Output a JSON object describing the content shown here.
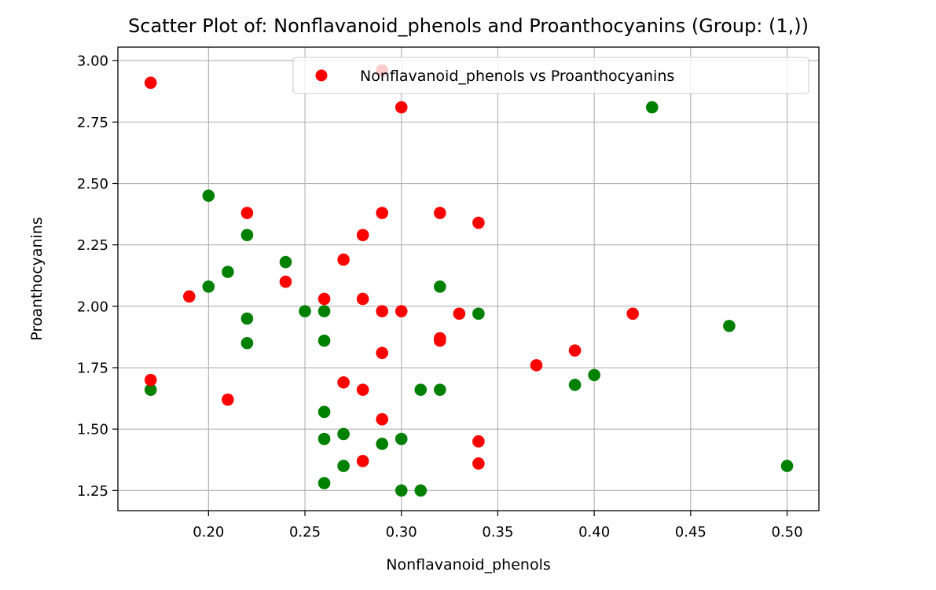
{
  "chart_data": {
    "type": "scatter",
    "title": "Scatter Plot of: Nonflavanoid_phenols and Proanthocyanins (Group: (1,))",
    "xlabel": "Nonflavanoid_phenols",
    "ylabel": "Proanthocyanins",
    "xlim": [
      0.153,
      0.5165
    ],
    "ylim": [
      1.168,
      3.055
    ],
    "xticks": [
      0.2,
      0.25,
      0.3,
      0.35,
      0.4,
      0.45,
      0.5
    ],
    "xtick_labels": [
      "0.20",
      "0.25",
      "0.30",
      "0.35",
      "0.40",
      "0.45",
      "0.50"
    ],
    "yticks": [
      1.25,
      1.5,
      1.75,
      2.0,
      2.25,
      2.5,
      2.75,
      3.0
    ],
    "ytick_labels": [
      "1.25",
      "1.50",
      "1.75",
      "2.00",
      "2.25",
      "2.50",
      "2.75",
      "3.00"
    ],
    "grid": true,
    "legend_position": "top-right",
    "series": [
      {
        "color": "#008000",
        "points": [
          [
            0.17,
            1.66
          ],
          [
            0.2,
            2.45
          ],
          [
            0.2,
            2.08
          ],
          [
            0.21,
            2.14
          ],
          [
            0.22,
            2.29
          ],
          [
            0.22,
            1.95
          ],
          [
            0.22,
            1.85
          ],
          [
            0.24,
            2.18
          ],
          [
            0.25,
            1.98
          ],
          [
            0.26,
            1.98
          ],
          [
            0.26,
            1.86
          ],
          [
            0.26,
            1.57
          ],
          [
            0.26,
            1.46
          ],
          [
            0.26,
            1.28
          ],
          [
            0.27,
            1.48
          ],
          [
            0.27,
            1.35
          ],
          [
            0.29,
            1.44
          ],
          [
            0.3,
            1.46
          ],
          [
            0.3,
            1.25
          ],
          [
            0.31,
            1.66
          ],
          [
            0.31,
            1.25
          ],
          [
            0.32,
            2.08
          ],
          [
            0.32,
            1.66
          ],
          [
            0.34,
            1.97
          ],
          [
            0.39,
            1.68
          ],
          [
            0.4,
            1.72
          ],
          [
            0.43,
            2.81
          ],
          [
            0.47,
            1.92
          ],
          [
            0.5,
            1.35
          ]
        ]
      },
      {
        "name": "Nonflavanoid_phenols vs Proanthocyanins",
        "color": "#ff0000",
        "points": [
          [
            0.17,
            2.91
          ],
          [
            0.17,
            1.7
          ],
          [
            0.19,
            2.04
          ],
          [
            0.21,
            1.62
          ],
          [
            0.22,
            2.38
          ],
          [
            0.24,
            2.1
          ],
          [
            0.26,
            2.03
          ],
          [
            0.27,
            2.19
          ],
          [
            0.27,
            1.69
          ],
          [
            0.28,
            2.29
          ],
          [
            0.28,
            2.03
          ],
          [
            0.28,
            1.66
          ],
          [
            0.28,
            1.37
          ],
          [
            0.29,
            2.96
          ],
          [
            0.29,
            2.38
          ],
          [
            0.29,
            1.98
          ],
          [
            0.29,
            1.81
          ],
          [
            0.29,
            1.54
          ],
          [
            0.3,
            2.81
          ],
          [
            0.3,
            1.98
          ],
          [
            0.32,
            2.38
          ],
          [
            0.32,
            1.87
          ],
          [
            0.32,
            1.86
          ],
          [
            0.33,
            1.97
          ],
          [
            0.34,
            2.34
          ],
          [
            0.34,
            1.45
          ],
          [
            0.34,
            1.36
          ],
          [
            0.37,
            1.76
          ],
          [
            0.39,
            1.82
          ],
          [
            0.42,
            1.97
          ]
        ]
      }
    ]
  }
}
